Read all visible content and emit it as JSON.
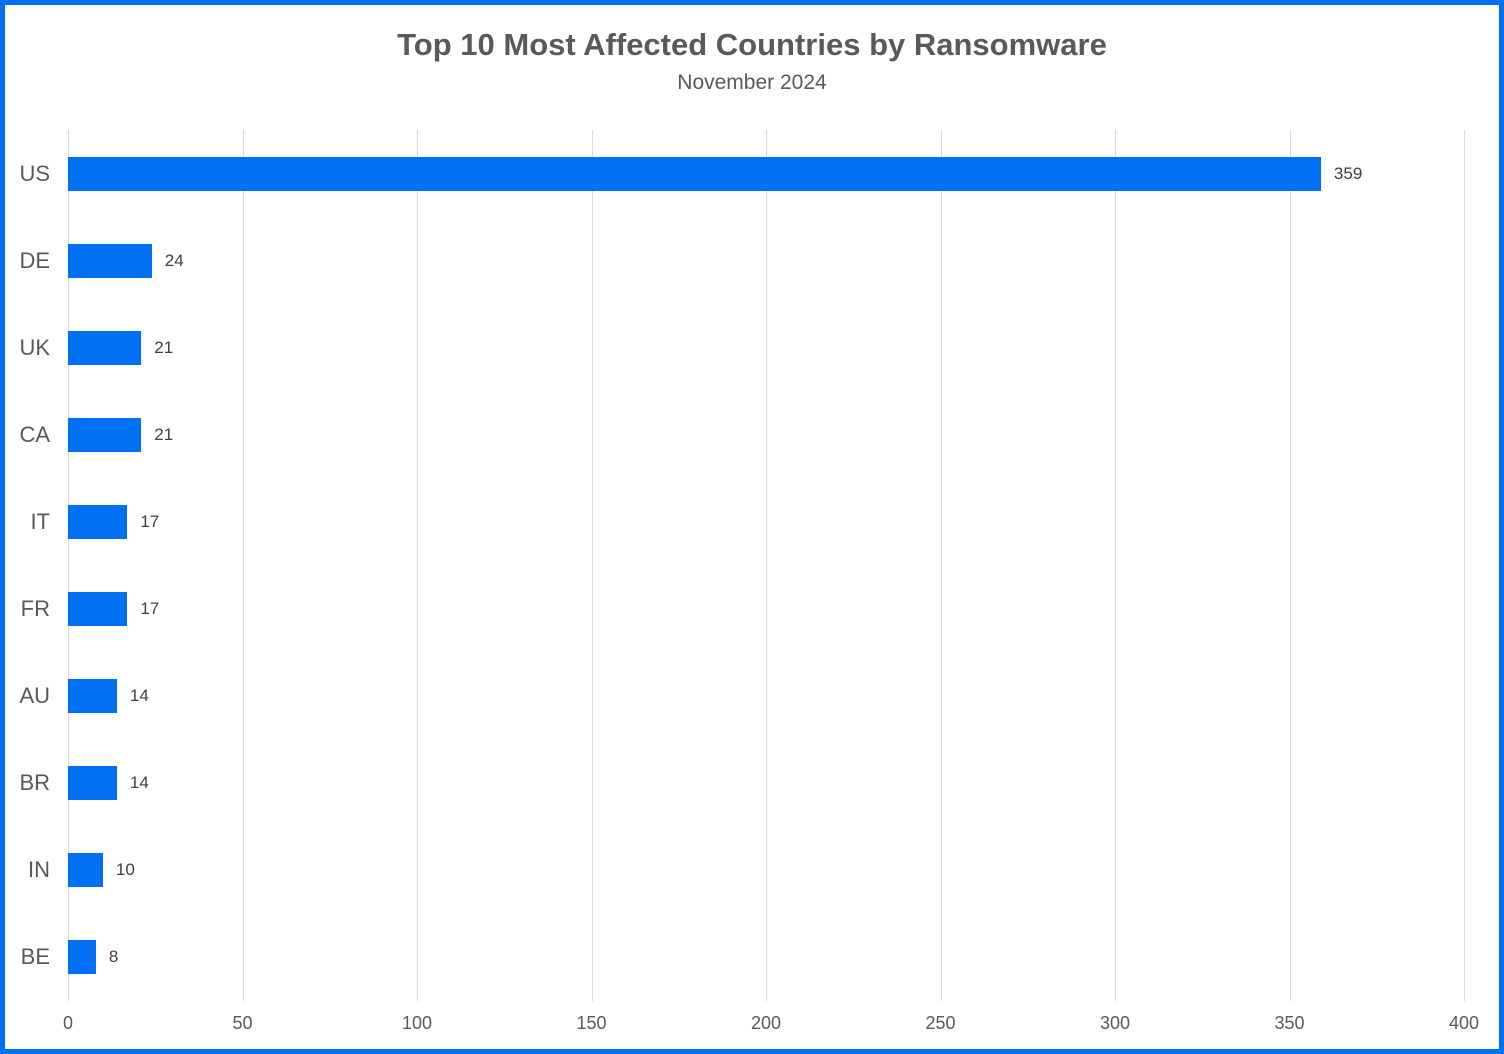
{
  "chart": {
    "title": "Top 10 Most Affected Countries by Ransomware",
    "subtitle": "November 2024"
  },
  "chart_data": {
    "type": "bar",
    "orientation": "horizontal",
    "title": "Top 10 Most Affected Countries by Ransomware",
    "subtitle": "November 2024",
    "categories": [
      "US",
      "DE",
      "UK",
      "CA",
      "IT",
      "FR",
      "AU",
      "BR",
      "IN",
      "BE"
    ],
    "values": [
      359,
      24,
      21,
      21,
      17,
      17,
      14,
      14,
      10,
      8
    ],
    "xlabel": "",
    "ylabel": "",
    "xlim": [
      0,
      400
    ],
    "xticks": [
      0,
      50,
      100,
      150,
      200,
      250,
      300,
      350,
      400
    ],
    "grid": true,
    "legend": "none",
    "colors": {
      "bar": "#0170F2",
      "frame_border": "#0170F2",
      "title_text": "#595959",
      "axis_text": "#595959",
      "value_text": "#404040",
      "gridline": "#D9D9D9"
    }
  }
}
